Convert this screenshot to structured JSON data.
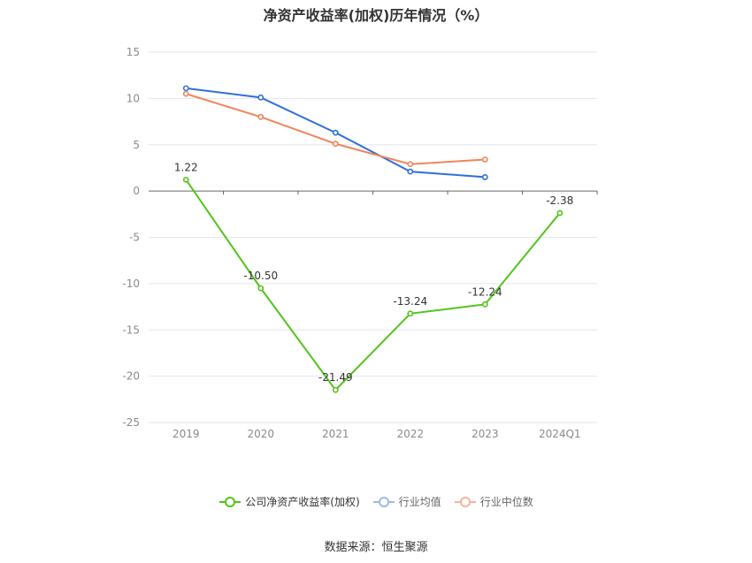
{
  "chart_data": {
    "type": "line",
    "title": "净资产收益率(加权)历年情况（%）",
    "categories": [
      "2019",
      "2020",
      "2021",
      "2022",
      "2023",
      "2024Q1"
    ],
    "ylim": [
      -25,
      15
    ],
    "yticks": [
      "15",
      "10",
      "5",
      "0",
      "-5",
      "-10",
      "-15",
      "-20",
      "-25"
    ],
    "grid": true,
    "legend_position": "bottom-center",
    "series": [
      {
        "name": "公司净资产收益率(加权)",
        "color": "#52c41a",
        "values": [
          1.22,
          -10.5,
          -21.49,
          -13.24,
          -12.24,
          -2.38
        ],
        "labels": [
          "1.22",
          "-10.50",
          "-21.49",
          "-13.24",
          "-12.24",
          "-2.38"
        ]
      },
      {
        "name": "行业均值",
        "color": "#2e6fdb",
        "values": [
          11.1,
          10.1,
          6.3,
          2.1,
          1.5,
          null
        ]
      },
      {
        "name": "行业中位数",
        "color": "#f0845c",
        "values": [
          10.5,
          8.0,
          5.1,
          2.9,
          3.4,
          null
        ]
      }
    ]
  },
  "source": "数据来源：恒生聚源"
}
